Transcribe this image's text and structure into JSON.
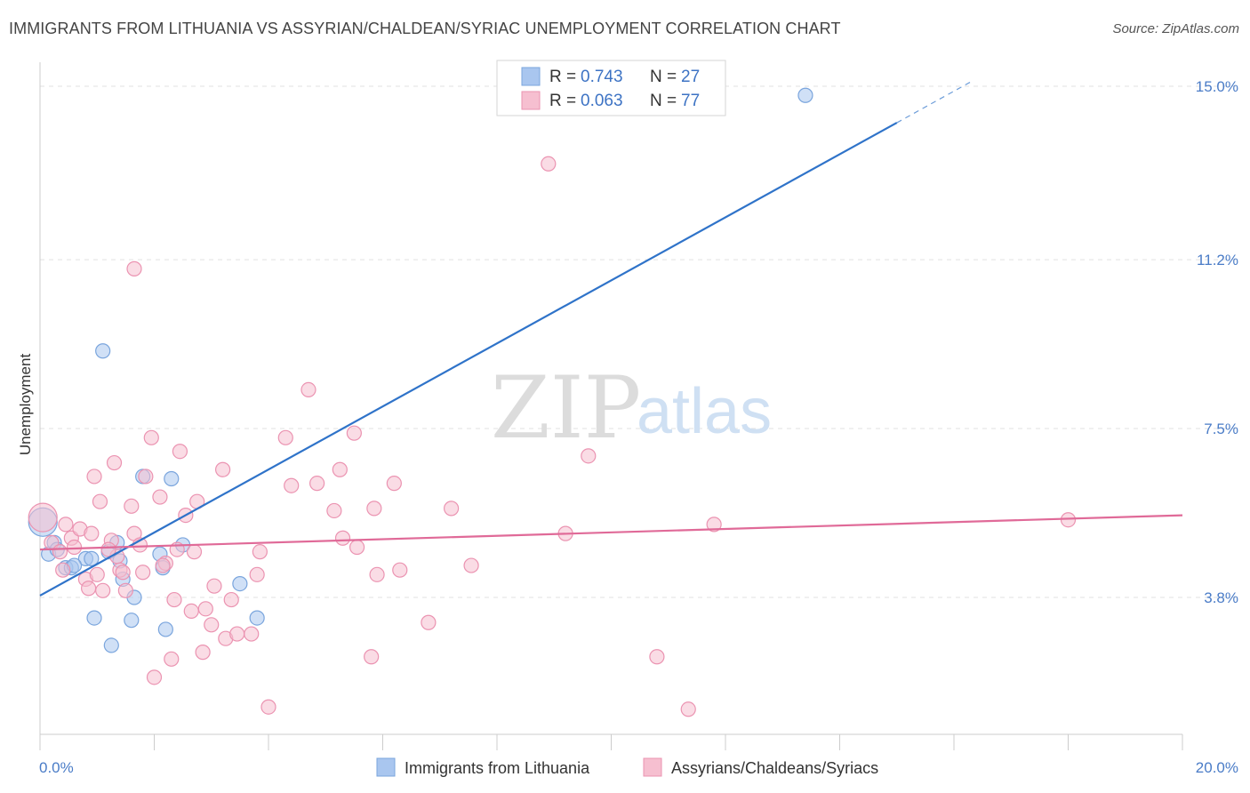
{
  "title": "IMMIGRANTS FROM LITHUANIA VS ASSYRIAN/CHALDEAN/SYRIAC UNEMPLOYMENT CORRELATION CHART",
  "source": "Source: ZipAtlas.com",
  "watermark": {
    "zip": "ZIP",
    "atlas": "atlas"
  },
  "colors": {
    "blue_fill": "#a9c6ef",
    "blue_stroke": "#7aa5dd",
    "blue_line": "#2f73c9",
    "pink_fill": "#f6bfd0",
    "pink_stroke": "#eb93b1",
    "pink_line": "#e06a98",
    "tick_text": "#4a7cc7",
    "grid": "#e2e2e2"
  },
  "legend": {
    "rows": [
      {
        "r_label": "R =",
        "r_value": "0.743",
        "n_label": "N =",
        "n_value": "27",
        "color": "blue"
      },
      {
        "r_label": "R =",
        "r_value": "0.063",
        "n_label": "N =",
        "n_value": "77",
        "color": "pink"
      }
    ]
  },
  "chart_data": {
    "type": "scatter",
    "title": "IMMIGRANTS FROM LITHUANIA VS ASSYRIAN/CHALDEAN/SYRIAC UNEMPLOYMENT CORRELATION CHART",
    "xlabel": "",
    "ylabel": "Unemployment",
    "xlim": [
      0,
      20
    ],
    "ylim": [
      0,
      15.5
    ],
    "x_tick_labels": [
      "0.0%",
      "20.0%"
    ],
    "y_ticks": [
      3.8,
      7.5,
      11.2,
      15.0
    ],
    "y_tick_labels": [
      "3.8%",
      "7.5%",
      "11.2%",
      "15.0%"
    ],
    "grid": true,
    "legend_placement": "top-center",
    "series": [
      {
        "name": "Immigrants from Lithuania",
        "color": "blue",
        "R": 0.743,
        "N": 27,
        "trend": {
          "x0": 0,
          "y0": 3.84,
          "x1": 15.0,
          "y1": 14.2,
          "dashed_to_x": 16.3,
          "dashed_to_y": 15.1
        },
        "points": [
          [
            0.05,
            5.45,
            "big"
          ],
          [
            0.15,
            4.75
          ],
          [
            0.25,
            5.0
          ],
          [
            0.3,
            4.85
          ],
          [
            0.45,
            4.45
          ],
          [
            0.55,
            4.45
          ],
          [
            0.8,
            4.65
          ],
          [
            0.9,
            4.65
          ],
          [
            0.95,
            3.35
          ],
          [
            1.2,
            4.8
          ],
          [
            1.35,
            5.0
          ],
          [
            1.45,
            4.2
          ],
          [
            1.6,
            3.3
          ],
          [
            1.65,
            3.8
          ],
          [
            1.8,
            6.45
          ],
          [
            2.1,
            4.75
          ],
          [
            2.15,
            4.45
          ],
          [
            2.3,
            6.4
          ],
          [
            1.1,
            9.2
          ],
          [
            1.25,
            2.75
          ],
          [
            2.2,
            3.1
          ],
          [
            3.5,
            4.1
          ],
          [
            3.8,
            3.35
          ],
          [
            13.4,
            14.8
          ],
          [
            0.6,
            4.5
          ],
          [
            1.4,
            4.6
          ],
          [
            2.5,
            4.95
          ]
        ]
      },
      {
        "name": "Assyrians/Chaldeans/Syriacs",
        "color": "pink",
        "R": 0.063,
        "N": 77,
        "trend": {
          "x0": 0,
          "y0": 4.85,
          "x1": 20.0,
          "y1": 5.6
        },
        "points": [
          [
            0.05,
            5.55,
            "big"
          ],
          [
            0.2,
            5.0
          ],
          [
            0.35,
            4.8
          ],
          [
            0.45,
            5.4
          ],
          [
            0.55,
            5.1
          ],
          [
            0.6,
            4.9
          ],
          [
            0.7,
            5.3
          ],
          [
            0.8,
            4.2
          ],
          [
            0.85,
            4.0
          ],
          [
            0.95,
            6.45
          ],
          [
            1.0,
            4.3
          ],
          [
            1.05,
            5.9
          ],
          [
            1.1,
            3.95
          ],
          [
            1.25,
            5.05
          ],
          [
            1.3,
            6.75
          ],
          [
            1.35,
            4.7
          ],
          [
            1.4,
            4.4
          ],
          [
            1.45,
            4.35
          ],
          [
            1.5,
            3.95
          ],
          [
            1.6,
            5.8
          ],
          [
            1.65,
            5.2
          ],
          [
            1.75,
            4.95
          ],
          [
            1.8,
            4.35
          ],
          [
            1.85,
            6.45
          ],
          [
            1.95,
            7.3
          ],
          [
            2.0,
            2.05
          ],
          [
            2.1,
            6.0
          ],
          [
            2.2,
            4.55
          ],
          [
            2.3,
            2.45
          ],
          [
            2.35,
            3.75
          ],
          [
            2.4,
            4.85
          ],
          [
            2.45,
            7.0
          ],
          [
            2.55,
            5.6
          ],
          [
            2.65,
            3.5
          ],
          [
            2.7,
            4.8
          ],
          [
            2.75,
            5.9
          ],
          [
            2.85,
            2.6
          ],
          [
            2.9,
            3.55
          ],
          [
            3.0,
            3.2
          ],
          [
            3.05,
            4.05
          ],
          [
            3.2,
            6.6
          ],
          [
            3.25,
            2.9
          ],
          [
            3.35,
            3.75
          ],
          [
            3.45,
            3.0
          ],
          [
            3.7,
            3.0
          ],
          [
            3.8,
            4.3
          ],
          [
            3.85,
            4.8
          ],
          [
            4.0,
            1.4
          ],
          [
            4.3,
            7.3
          ],
          [
            4.4,
            6.25
          ],
          [
            4.7,
            8.35
          ],
          [
            4.85,
            6.3
          ],
          [
            5.15,
            5.7
          ],
          [
            5.25,
            6.6
          ],
          [
            5.3,
            5.1
          ],
          [
            5.5,
            7.4
          ],
          [
            5.55,
            4.9
          ],
          [
            5.8,
            2.5
          ],
          [
            5.85,
            5.75
          ],
          [
            5.9,
            4.3
          ],
          [
            6.2,
            6.3
          ],
          [
            6.3,
            4.4
          ],
          [
            6.8,
            3.25
          ],
          [
            7.2,
            5.75
          ],
          [
            7.55,
            4.5
          ],
          [
            8.9,
            13.3
          ],
          [
            9.2,
            5.2
          ],
          [
            9.6,
            6.9
          ],
          [
            10.8,
            2.5
          ],
          [
            11.35,
            1.35
          ],
          [
            11.8,
            5.4
          ],
          [
            18.0,
            5.5
          ],
          [
            1.65,
            11.0
          ],
          [
            1.2,
            4.85
          ],
          [
            0.9,
            5.2
          ],
          [
            2.15,
            4.5
          ],
          [
            0.4,
            4.4
          ]
        ]
      }
    ]
  }
}
